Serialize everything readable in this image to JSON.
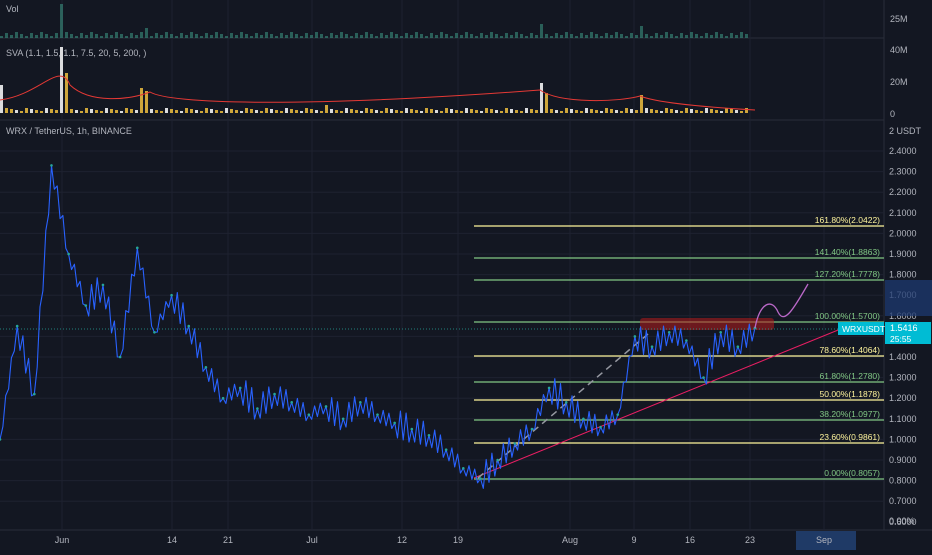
{
  "colors": {
    "background": "#131722",
    "grid": "#1e2230",
    "axis_text": "#b2b5be",
    "price_line": "#2962ff",
    "candle_up": "#26a69a",
    "fib_green": "#81c784",
    "fib_yellow": "#fff59d",
    "trend_pink": "#e91e63",
    "resistance_box": "#b71c1c",
    "price_label_bg": "#00bcd4",
    "forecast_purple": "#ba68c8",
    "time_highlight": "#1f3a66"
  },
  "panes": {
    "volume": {
      "title": "Vol",
      "ticks": [
        "25M"
      ]
    },
    "sva": {
      "title": "SVA (1.1, 1.5, 1.1, 7.5, 20, 5, 200, )",
      "ticks": [
        "40M",
        "20M",
        "0"
      ]
    },
    "price": {
      "title": "WRX / TetherUS, 1h, BINANCE"
    }
  },
  "current_price": {
    "label": "WRXUSDT",
    "value": "1.5416",
    "countdown": "25:55"
  },
  "chart_data": {
    "type": "line",
    "symbol": "WRX / TetherUS",
    "interval": "1h",
    "exchange": "BINANCE",
    "y_axis": {
      "unit_label": "2 USDT",
      "range": [
        0.0,
        2.5
      ],
      "ticks": [
        "2.4000",
        "2.3000",
        "2.2000",
        "2.1000",
        "2.0000",
        "1.9000",
        "1.8000",
        "1.7000",
        "1.6000",
        "1.5000",
        "1.4000",
        "1.3000",
        "1.2000",
        "1.1000",
        "1.0000",
        "0.9000",
        "0.8000",
        "0.7000",
        "0.6000",
        "0.00%"
      ]
    },
    "x_axis": {
      "ticks": [
        "Jun",
        "14",
        "21",
        "Jul",
        "12",
        "19",
        "Aug",
        "9",
        "16",
        "23",
        "Sep"
      ]
    },
    "series": [
      {
        "x": [
          "May 28",
          "May 30",
          "Jun 1",
          "Jun 3",
          "Jun 5",
          "Jun 7",
          "Jun 9",
          "Jun 11",
          "Jun 13",
          "Jun 15",
          "Jun 17",
          "Jun 19",
          "Jun 21",
          "Jun 23",
          "Jun 25",
          "Jun 27",
          "Jun 29",
          "Jul 1",
          "Jul 3",
          "Jul 5",
          "Jul 7",
          "Jul 9",
          "Jul 11",
          "Jul 13",
          "Jul 15",
          "Jul 17",
          "Jul 19",
          "Jul 21",
          "Jul 23",
          "Jul 25",
          "Jul 27",
          "Jul 29",
          "Jul 31",
          "Aug 2",
          "Aug 4",
          "Aug 6",
          "Aug 8",
          "Aug 10",
          "Aug 12",
          "Aug 14",
          "Aug 16",
          "Aug 18",
          "Aug 20",
          "Aug 22",
          "Aug 23"
        ],
        "y": [
          1.0,
          1.55,
          1.22,
          2.33,
          1.9,
          1.65,
          1.75,
          1.4,
          1.93,
          1.52,
          1.7,
          1.55,
          1.35,
          1.2,
          1.25,
          1.15,
          1.22,
          1.18,
          1.12,
          1.16,
          1.1,
          1.18,
          1.12,
          1.08,
          1.05,
          1.02,
          0.95,
          0.86,
          0.81,
          0.9,
          0.98,
          1.05,
          1.25,
          1.18,
          1.1,
          1.06,
          1.12,
          1.5,
          1.45,
          1.52,
          1.48,
          1.3,
          1.52,
          1.45,
          1.5416
        ]
      }
    ],
    "fibonacci": [
      {
        "label": "161.80%(2.0422)",
        "level": 2.0422
      },
      {
        "label": "141.40%(1.8863)",
        "level": 1.8863
      },
      {
        "label": "127.20%(1.7778)",
        "level": 1.7778
      },
      {
        "label": "100.00%(1.5700)",
        "level": 1.57
      },
      {
        "label": "78.60%(1.4064)",
        "level": 1.4064
      },
      {
        "label": "61.80%(1.2780)",
        "level": 1.278
      },
      {
        "label": "50.00%(1.1878)",
        "level": 1.1878
      },
      {
        "label": "38.20%(1.0977)",
        "level": 1.0977
      },
      {
        "label": "23.60%(0.9861)",
        "level": 0.9861
      },
      {
        "label": "0.00%(0.8057)",
        "level": 0.8057
      }
    ],
    "grid": true
  }
}
